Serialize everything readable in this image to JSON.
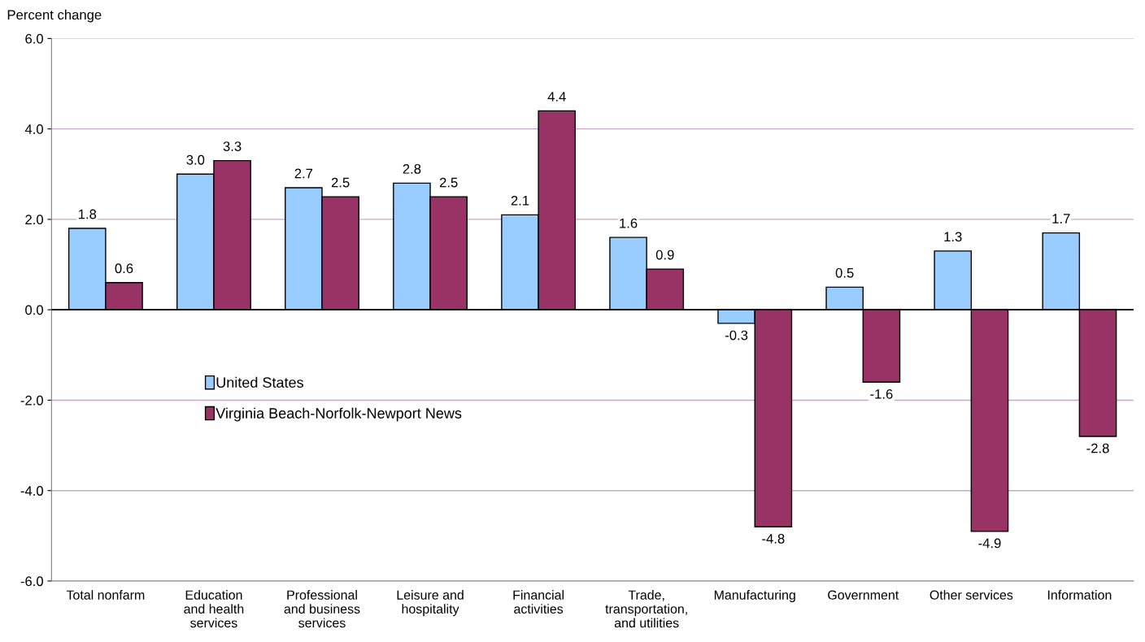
{
  "chart_data": {
    "type": "bar",
    "ylabel": "Percent change",
    "categories": [
      "Total nonfarm",
      "Education\nand health\nservices",
      "Professional\nand business\nservices",
      "Leisure and\nhospitality",
      "Financial\nactivities",
      "Trade,\ntransportation,\nand utilities",
      "Manufacturing",
      "Government",
      "Other services",
      "Information"
    ],
    "series": [
      {
        "name": "United States",
        "color": "#99ccff",
        "values": [
          1.8,
          3.0,
          2.7,
          2.8,
          2.1,
          1.6,
          -0.3,
          0.5,
          1.3,
          1.7
        ],
        "value_labels": [
          "1.8",
          "3.0",
          "2.7",
          "2.8",
          "2.1",
          "1.6",
          "-0.3",
          "0.5",
          "1.3",
          "1.7"
        ]
      },
      {
        "name": "Virginia Beach-Norfolk-Newport News",
        "color": "#993366",
        "values": [
          0.6,
          3.3,
          2.5,
          2.5,
          4.4,
          0.9,
          -4.8,
          -1.6,
          -4.9,
          -2.8
        ],
        "value_labels": [
          "0.6",
          "3.3",
          "2.5",
          "2.5",
          "4.4",
          "0.9",
          "-4.8",
          "-1.6",
          "-4.9",
          "-2.8"
        ]
      }
    ],
    "ylim": [
      -6,
      6
    ],
    "yticks": [
      {
        "value": -6,
        "label": "-6.0"
      },
      {
        "value": -4,
        "label": "-4.0"
      },
      {
        "value": -2,
        "label": "-2.0"
      },
      {
        "value": 0,
        "label": "0.0"
      },
      {
        "value": 2,
        "label": "2.0"
      },
      {
        "value": 4,
        "label": "4.0"
      },
      {
        "value": 6,
        "label": "6.0"
      }
    ],
    "ref_lines": [
      {
        "axis": "y",
        "value": 0,
        "color": "#000000"
      }
    ],
    "grid": "y",
    "legend": "bottom left"
  }
}
